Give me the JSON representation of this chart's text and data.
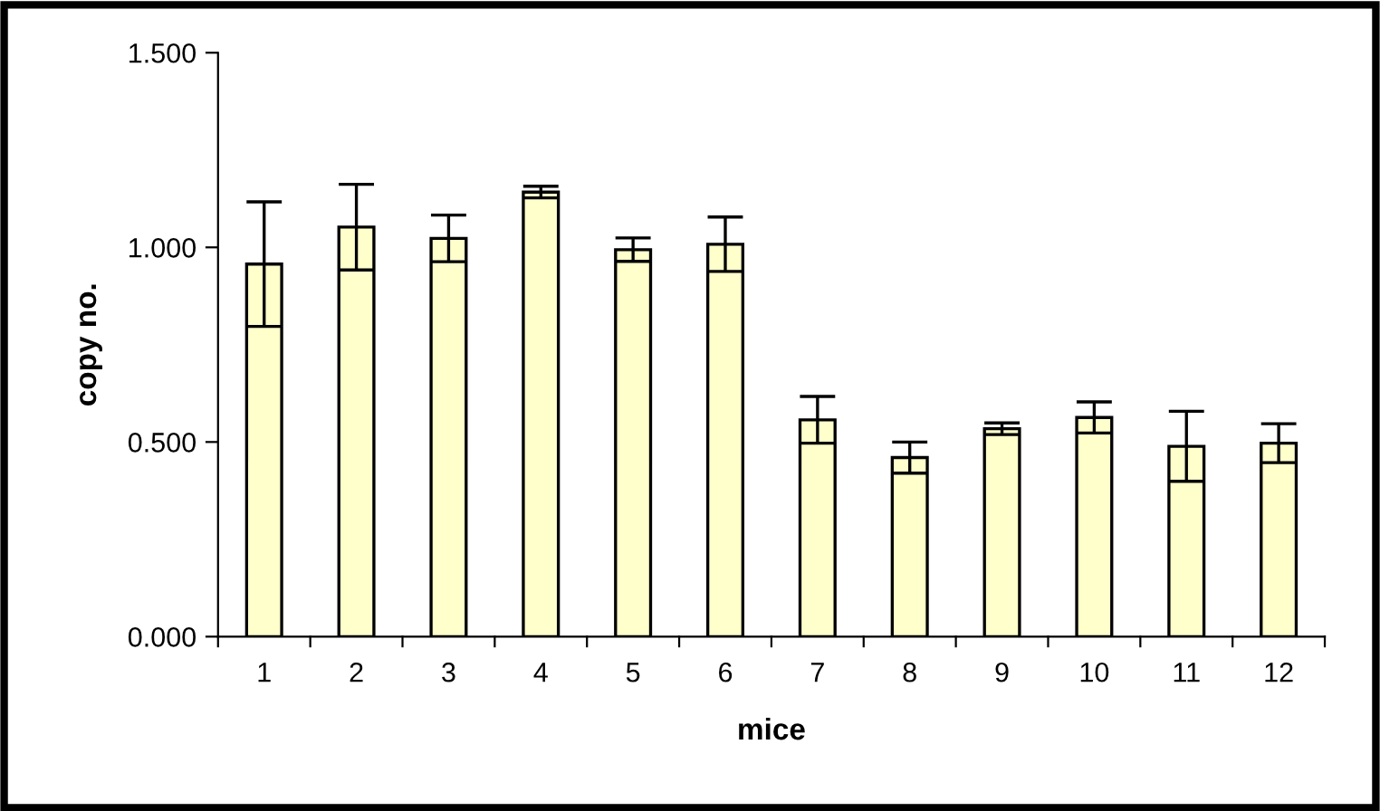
{
  "chart_data": {
    "type": "bar",
    "xlabel": "mice",
    "ylabel": "copy no.",
    "categories": [
      "1",
      "2",
      "3",
      "4",
      "5",
      "6",
      "7",
      "8",
      "9",
      "10",
      "11",
      "12"
    ],
    "values": [
      0.957,
      1.052,
      1.023,
      1.142,
      0.994,
      1.008,
      0.557,
      0.46,
      0.534,
      0.563,
      0.489,
      0.497
    ],
    "errors": [
      0.16,
      0.11,
      0.06,
      0.015,
      0.03,
      0.07,
      0.06,
      0.04,
      0.015,
      0.04,
      0.09,
      0.05
    ],
    "color": "#ffffcc",
    "ylim": [
      0,
      1.5
    ],
    "yticks": [
      {
        "value": 0,
        "label": "0.000"
      },
      {
        "value": 0.5,
        "label": "0.500"
      },
      {
        "value": 1.0,
        "label": "1.000"
      },
      {
        "value": 1.5,
        "label": "1.500"
      }
    ],
    "grid": false
  }
}
